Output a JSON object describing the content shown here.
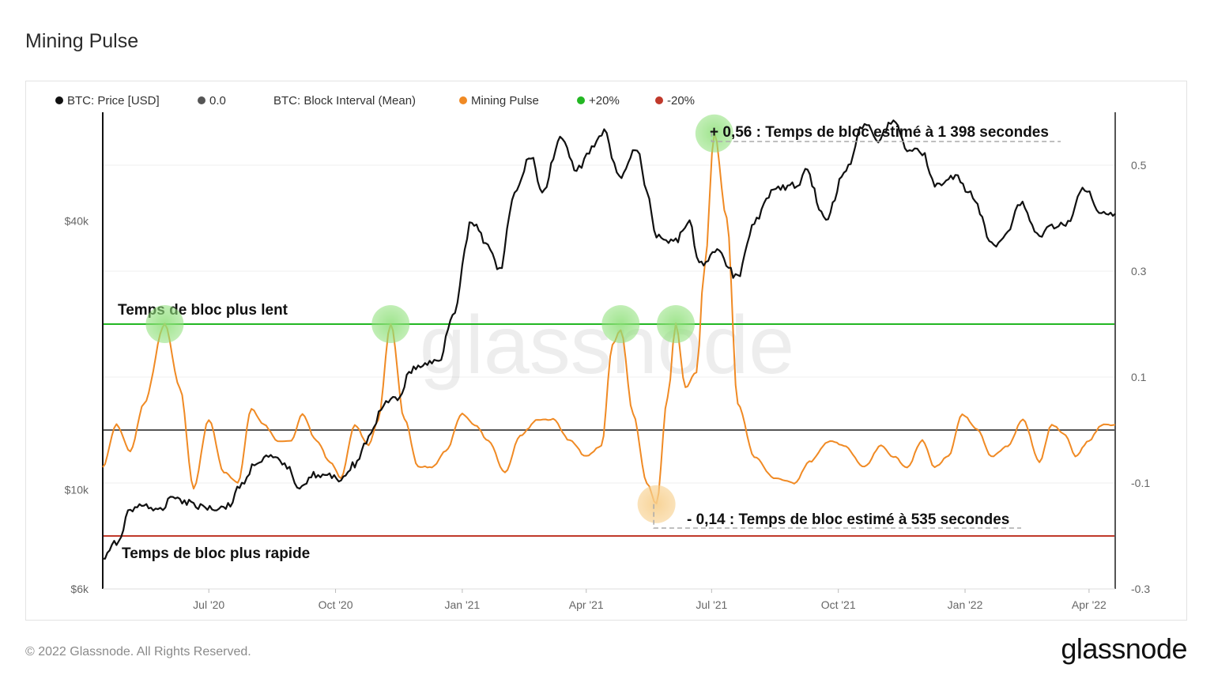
{
  "page": {
    "title": "Mining Pulse"
  },
  "footer": {
    "copyright": "© 2022 Glassnode. All Rights Reserved.",
    "logo": "glassnode"
  },
  "watermark": "glassnode",
  "colors": {
    "price": "#111111",
    "zero": "#555555",
    "block_interval": "#cccccc",
    "pulse": "#f08a24",
    "plus20": "#23b723",
    "minus20": "#c0392b"
  },
  "chart_data": {
    "type": "line",
    "legend": [
      {
        "label": "BTC: Price [USD]",
        "color": "#111111"
      },
      {
        "label": "0.0",
        "color": "#555555"
      },
      {
        "label": "BTC: Block Interval (Mean)",
        "color": "#cccccc",
        "hidden": true
      },
      {
        "label": "Mining Pulse",
        "color": "#f08a24"
      },
      {
        "label": "+20%",
        "color": "#23b723"
      },
      {
        "label": "-20%",
        "color": "#c0392b"
      }
    ],
    "x_axis": {
      "range": [
        "2020-04-15",
        "2022-04-20"
      ],
      "ticks": [
        {
          "date": "2020-07-01",
          "label": "Jul '20"
        },
        {
          "date": "2020-10-01",
          "label": "Oct '20"
        },
        {
          "date": "2021-01-01",
          "label": "Jan '21"
        },
        {
          "date": "2021-04-01",
          "label": "Apr '21"
        },
        {
          "date": "2021-07-01",
          "label": "Jul '21"
        },
        {
          "date": "2021-10-01",
          "label": "Oct '21"
        },
        {
          "date": "2022-01-01",
          "label": "Jan '22"
        },
        {
          "date": "2022-04-01",
          "label": "Apr '22"
        }
      ]
    },
    "y_left": {
      "scale": "log",
      "range": [
        6000,
        70000
      ],
      "ticks": [
        {
          "value": 6000,
          "label": "$6k"
        },
        {
          "value": 10000,
          "label": "$10k"
        },
        {
          "value": 40000,
          "label": "$40k"
        }
      ]
    },
    "y_right": {
      "range": [
        -0.3,
        0.6
      ],
      "ticks": [
        {
          "value": 0.5,
          "label": "0.5"
        },
        {
          "value": 0.3,
          "label": "0.3"
        },
        {
          "value": 0.1,
          "label": "0.1"
        },
        {
          "value": -0.1,
          "label": "-0.1"
        },
        {
          "value": -0.3,
          "label": "-0.3"
        }
      ]
    },
    "reference_lines": [
      {
        "value": 0.2,
        "color": "#23b723",
        "label": "Temps de bloc plus lent"
      },
      {
        "value": 0.0,
        "color": "#555555"
      },
      {
        "value": -0.2,
        "color": "#c0392b",
        "label": "Temps de bloc plus rapide"
      }
    ],
    "annotations": [
      {
        "text": "+ 0,56 : Temps de bloc estimé à 1 398 secondes",
        "date": "2021-07-01",
        "value": 0.56
      },
      {
        "text": "- 0,14 : Temps de bloc estimé à 535 secondes",
        "date": "2021-05-20",
        "value": -0.14
      }
    ],
    "highlights": [
      {
        "date": "2020-05-30",
        "value": 0.2,
        "color": "green"
      },
      {
        "date": "2020-11-10",
        "value": 0.2,
        "color": "green"
      },
      {
        "date": "2021-04-26",
        "value": 0.2,
        "color": "green"
      },
      {
        "date": "2021-06-05",
        "value": 0.2,
        "color": "green"
      },
      {
        "date": "2021-07-03",
        "value": 0.56,
        "color": "green"
      },
      {
        "date": "2021-05-22",
        "value": -0.14,
        "color": "orange"
      }
    ],
    "series": [
      {
        "name": "BTC: Price [USD]",
        "axis": "left",
        "color": "#111111",
        "points": [
          [
            "2020-04-15",
            7000
          ],
          [
            "2020-04-25",
            7600
          ],
          [
            "2020-05-05",
            9000
          ],
          [
            "2020-05-15",
            9300
          ],
          [
            "2020-05-25",
            8900
          ],
          [
            "2020-06-05",
            9700
          ],
          [
            "2020-06-15",
            9400
          ],
          [
            "2020-06-25",
            9200
          ],
          [
            "2020-07-05",
            9100
          ],
          [
            "2020-07-15",
            9200
          ],
          [
            "2020-07-25",
            10300
          ],
          [
            "2020-08-05",
            11600
          ],
          [
            "2020-08-15",
            11800
          ],
          [
            "2020-08-25",
            11400
          ],
          [
            "2020-09-05",
            10200
          ],
          [
            "2020-09-15",
            10800
          ],
          [
            "2020-09-25",
            10700
          ],
          [
            "2020-10-05",
            10600
          ],
          [
            "2020-10-15",
            11400
          ],
          [
            "2020-10-25",
            13000
          ],
          [
            "2020-11-05",
            15500
          ],
          [
            "2020-11-15",
            16000
          ],
          [
            "2020-11-25",
            18500
          ],
          [
            "2020-12-05",
            19100
          ],
          [
            "2020-12-15",
            19400
          ],
          [
            "2020-12-25",
            24700
          ],
          [
            "2021-01-08",
            40000
          ],
          [
            "2021-01-18",
            36000
          ],
          [
            "2021-01-28",
            31000
          ],
          [
            "2021-02-08",
            46000
          ],
          [
            "2021-02-20",
            56000
          ],
          [
            "2021-02-28",
            46000
          ],
          [
            "2021-03-13",
            61000
          ],
          [
            "2021-03-25",
            52000
          ],
          [
            "2021-04-05",
            58000
          ],
          [
            "2021-04-14",
            63000
          ],
          [
            "2021-04-25",
            50000
          ],
          [
            "2021-05-08",
            58000
          ],
          [
            "2021-05-15",
            47000
          ],
          [
            "2021-05-22",
            37000
          ],
          [
            "2021-06-05",
            36000
          ],
          [
            "2021-06-15",
            40000
          ],
          [
            "2021-06-22",
            32000
          ],
          [
            "2021-07-05",
            34000
          ],
          [
            "2021-07-20",
            29800
          ],
          [
            "2021-08-01",
            40000
          ],
          [
            "2021-08-15",
            47000
          ],
          [
            "2021-09-01",
            48000
          ],
          [
            "2021-09-07",
            52000
          ],
          [
            "2021-09-22",
            40000
          ],
          [
            "2021-10-05",
            51000
          ],
          [
            "2021-10-20",
            66000
          ],
          [
            "2021-10-30",
            61000
          ],
          [
            "2021-11-10",
            67500
          ],
          [
            "2021-11-20",
            58000
          ],
          [
            "2021-12-01",
            57000
          ],
          [
            "2021-12-10",
            48000
          ],
          [
            "2021-12-25",
            50000
          ],
          [
            "2022-01-05",
            46000
          ],
          [
            "2022-01-22",
            35000
          ],
          [
            "2022-02-01",
            38000
          ],
          [
            "2022-02-10",
            44000
          ],
          [
            "2022-02-24",
            37000
          ],
          [
            "2022-03-05",
            39000
          ],
          [
            "2022-03-15",
            39000
          ],
          [
            "2022-03-29",
            47500
          ],
          [
            "2022-04-10",
            42000
          ],
          [
            "2022-04-20",
            41500
          ]
        ]
      },
      {
        "name": "Mining Pulse",
        "axis": "right",
        "color": "#f08a24",
        "points": [
          [
            "2020-04-15",
            -0.07
          ],
          [
            "2020-04-25",
            0.01
          ],
          [
            "2020-05-05",
            -0.04
          ],
          [
            "2020-05-15",
            0.05
          ],
          [
            "2020-05-30",
            0.2
          ],
          [
            "2020-06-10",
            0.08
          ],
          [
            "2020-06-20",
            -0.11
          ],
          [
            "2020-07-01",
            0.02
          ],
          [
            "2020-07-12",
            -0.08
          ],
          [
            "2020-07-22",
            -0.1
          ],
          [
            "2020-08-01",
            0.04
          ],
          [
            "2020-08-10",
            0.01
          ],
          [
            "2020-08-20",
            -0.02
          ],
          [
            "2020-08-30",
            -0.02
          ],
          [
            "2020-09-07",
            0.03
          ],
          [
            "2020-09-17",
            -0.02
          ],
          [
            "2020-09-27",
            -0.06
          ],
          [
            "2020-10-05",
            -0.09
          ],
          [
            "2020-10-15",
            0.01
          ],
          [
            "2020-10-25",
            -0.03
          ],
          [
            "2020-11-01",
            0.02
          ],
          [
            "2020-11-10",
            0.2
          ],
          [
            "2020-11-20",
            0.02
          ],
          [
            "2020-11-30",
            -0.07
          ],
          [
            "2020-12-10",
            -0.07
          ],
          [
            "2020-12-20",
            -0.04
          ],
          [
            "2021-01-01",
            0.03
          ],
          [
            "2021-01-10",
            0.01
          ],
          [
            "2021-01-20",
            -0.02
          ],
          [
            "2021-02-01",
            -0.08
          ],
          [
            "2021-02-12",
            -0.01
          ],
          [
            "2021-02-25",
            0.02
          ],
          [
            "2021-03-08",
            0.02
          ],
          [
            "2021-03-20",
            -0.02
          ],
          [
            "2021-04-01",
            -0.05
          ],
          [
            "2021-04-12",
            -0.03
          ],
          [
            "2021-04-20",
            0.16
          ],
          [
            "2021-04-26",
            0.19
          ],
          [
            "2021-05-05",
            0.03
          ],
          [
            "2021-05-15",
            -0.1
          ],
          [
            "2021-05-22",
            -0.14
          ],
          [
            "2021-05-30",
            0.06
          ],
          [
            "2021-06-05",
            0.2
          ],
          [
            "2021-06-12",
            0.08
          ],
          [
            "2021-06-20",
            0.11
          ],
          [
            "2021-06-26",
            0.31
          ],
          [
            "2021-07-03",
            0.56
          ],
          [
            "2021-07-12",
            0.4
          ],
          [
            "2021-07-20",
            0.05
          ],
          [
            "2021-08-01",
            -0.05
          ],
          [
            "2021-08-15",
            -0.09
          ],
          [
            "2021-08-30",
            -0.1
          ],
          [
            "2021-09-10",
            -0.06
          ],
          [
            "2021-09-25",
            -0.02
          ],
          [
            "2021-10-05",
            -0.03
          ],
          [
            "2021-10-20",
            -0.07
          ],
          [
            "2021-11-01",
            -0.03
          ],
          [
            "2021-11-10",
            -0.05
          ],
          [
            "2021-11-20",
            -0.07
          ],
          [
            "2021-12-01",
            -0.02
          ],
          [
            "2021-12-10",
            -0.07
          ],
          [
            "2021-12-20",
            -0.05
          ],
          [
            "2021-12-30",
            0.03
          ],
          [
            "2022-01-10",
            0.0
          ],
          [
            "2022-01-20",
            -0.05
          ],
          [
            "2022-02-01",
            -0.03
          ],
          [
            "2022-02-12",
            0.02
          ],
          [
            "2022-02-24",
            -0.06
          ],
          [
            "2022-03-05",
            0.01
          ],
          [
            "2022-03-15",
            -0.01
          ],
          [
            "2022-03-22",
            -0.05
          ],
          [
            "2022-04-01",
            -0.02
          ],
          [
            "2022-04-10",
            0.01
          ],
          [
            "2022-04-20",
            0.01
          ]
        ]
      }
    ]
  }
}
